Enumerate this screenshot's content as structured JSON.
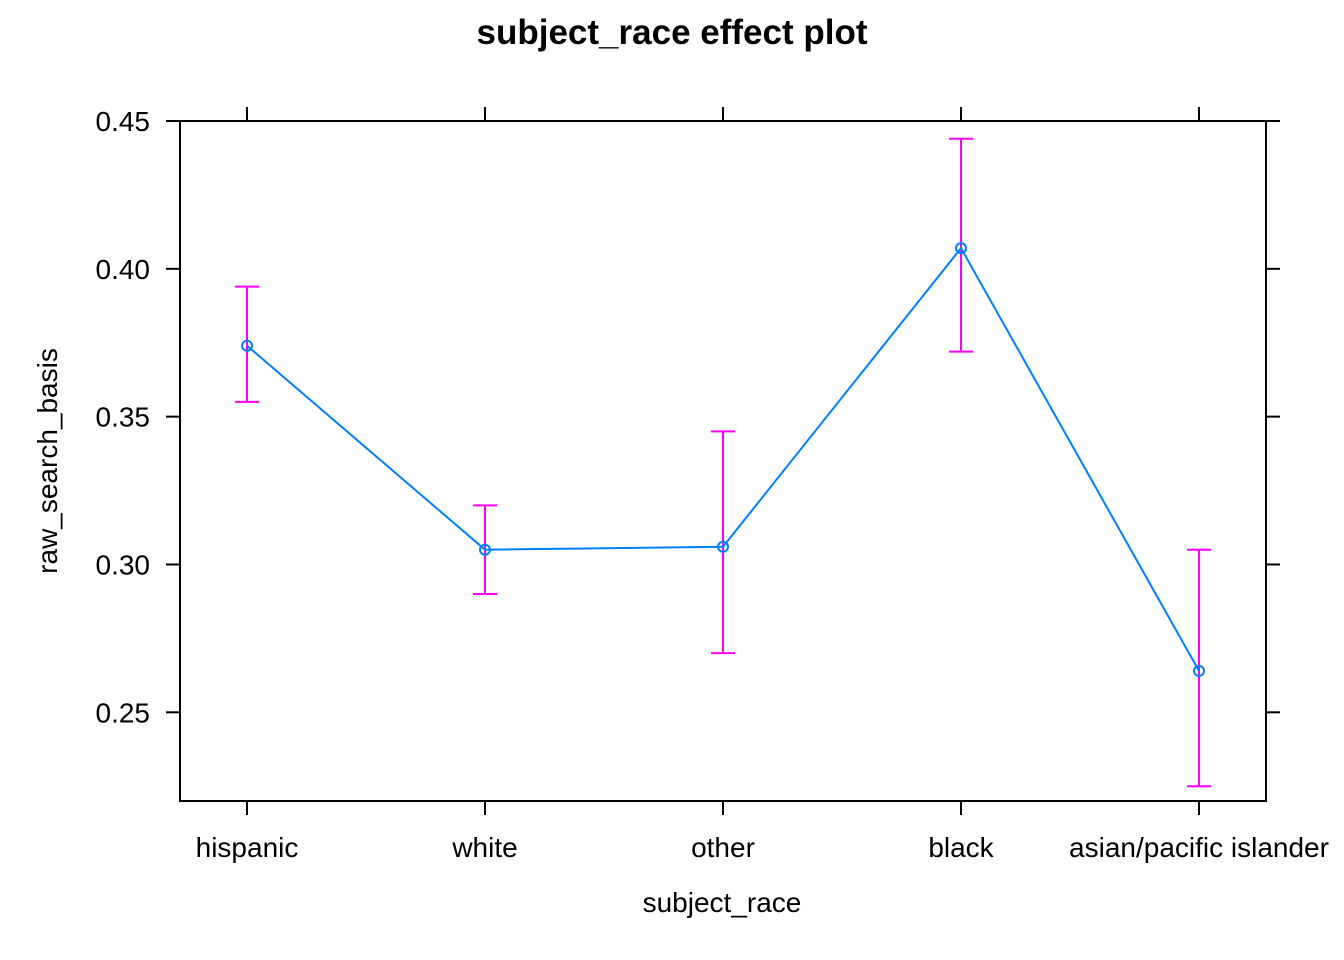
{
  "chart_data": {
    "type": "line",
    "title": "subject_race effect plot",
    "xlabel": "subject_race",
    "ylabel": "raw_search_basis",
    "categories": [
      "hispanic",
      "white",
      "other",
      "black",
      "asian/pacific islander"
    ],
    "values": [
      0.374,
      0.305,
      0.306,
      0.407,
      0.264
    ],
    "lower": [
      0.355,
      0.29,
      0.27,
      0.372,
      0.225
    ],
    "upper": [
      0.394,
      0.32,
      0.345,
      0.444,
      0.305
    ],
    "y_ticks": [
      "0.25",
      "0.30",
      "0.35",
      "0.40",
      "0.45"
    ],
    "ylim": [
      0.22,
      0.45
    ],
    "grid": false,
    "line_color": "#0080ff",
    "errorbar_color": "#ff00ff"
  }
}
